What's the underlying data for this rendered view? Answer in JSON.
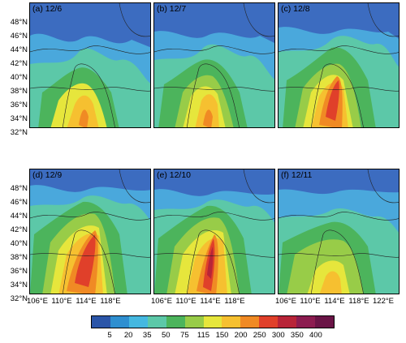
{
  "panels": [
    {
      "label": "(a) 12/6"
    },
    {
      "label": "(b) 12/7"
    },
    {
      "label": "(c) 12/8"
    },
    {
      "label": "(d) 12/9"
    },
    {
      "label": "(e) 12/10"
    },
    {
      "label": "(f) 12/11"
    }
  ],
  "y_ticks": [
    "48°N",
    "46°N",
    "44°N",
    "42°N",
    "40°N",
    "38°N",
    "36°N",
    "34°N",
    "32°N"
  ],
  "x_ticks": [
    "106°E",
    "110°E",
    "114°E",
    "118°E",
    "122°E"
  ],
  "colorbar": {
    "labels": [
      "5",
      "20",
      "35",
      "50",
      "75",
      "115",
      "150",
      "200",
      "250",
      "300",
      "350",
      "400"
    ],
    "colors": [
      "#2b55a8",
      "#2f8fd0",
      "#45b8e0",
      "#5cc8a8",
      "#4cb45c",
      "#98cc48",
      "#e6e63c",
      "#f6c030",
      "#f08a24",
      "#e0402a",
      "#b82438",
      "#8c1c50",
      "#6a1446"
    ]
  }
}
